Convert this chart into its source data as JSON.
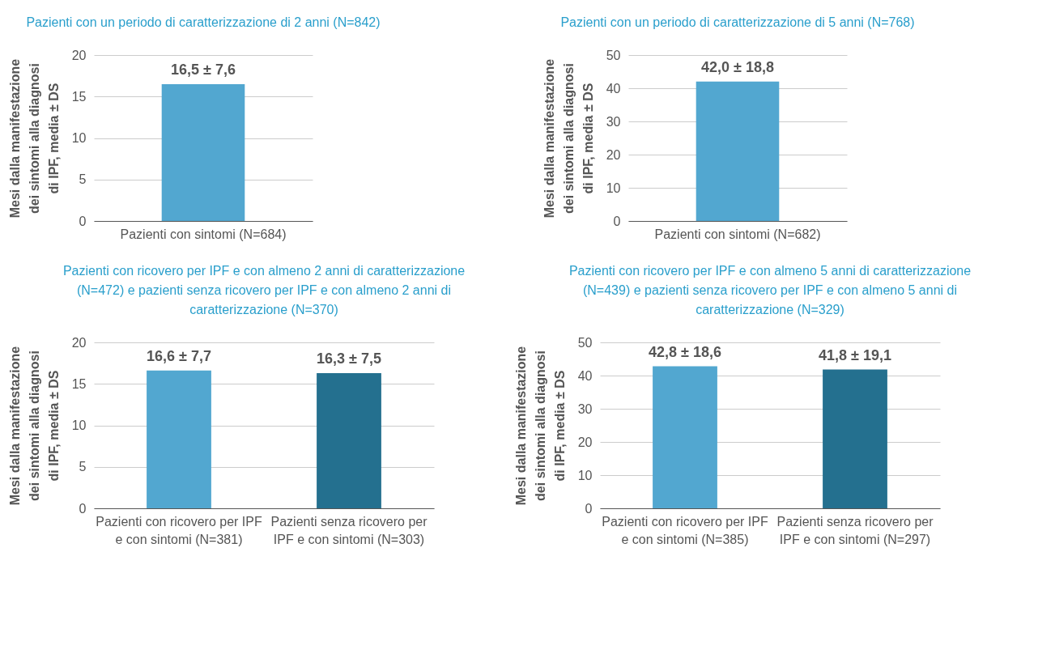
{
  "chart_data": [
    {
      "type": "bar",
      "title": "Pazienti con un periodo di caratterizzazione di 2 anni (N=842)",
      "ylabel": "Mesi dalla manifestazione dei sintomi alla diagnosi di IPF, media ± DS",
      "categories": [
        "Pazienti con sintomi (N=684)"
      ],
      "values": [
        16.5
      ],
      "colors": [
        "#52a7d0"
      ],
      "value_labels": [
        "16,5 ± 7,6"
      ],
      "ylim": [
        0,
        20
      ],
      "yticks": [
        0,
        5,
        10,
        15,
        20
      ],
      "grid": "y"
    },
    {
      "type": "bar",
      "title": "Pazienti con un periodo di caratterizzazione di 5 anni (N=768)",
      "ylabel": "Mesi dalla manifestazione dei sintomi alla diagnosi di IPF, media ± DS",
      "categories": [
        "Pazienti con sintomi (N=682)"
      ],
      "values": [
        42.0
      ],
      "colors": [
        "#52a7d0"
      ],
      "value_labels": [
        "42,0 ± 18,8"
      ],
      "ylim": [
        0,
        50
      ],
      "yticks": [
        0,
        10,
        20,
        30,
        40,
        50
      ],
      "grid": "y"
    },
    {
      "type": "bar",
      "title": "Pazienti con ricovero per IPF e con almeno 2 anni di caratterizzazione (N=472) e pazienti senza ricovero per IPF e con almeno 2 anni di caratterizzazione (N=370)",
      "ylabel": "Mesi dalla manifestazione dei sintomi alla diagnosi di IPF, media ± DS",
      "categories": [
        "Pazienti con ricovero per IPF e con sintomi (N=381)",
        "Pazienti senza ricovero per IPF e con sintomi (N=303)"
      ],
      "values": [
        16.6,
        16.3
      ],
      "colors": [
        "#52a7d0",
        "#24708f"
      ],
      "value_labels": [
        "16,6 ± 7,7",
        "16,3 ± 7,5"
      ],
      "ylim": [
        0,
        20
      ],
      "yticks": [
        0,
        5,
        10,
        15,
        20
      ],
      "grid": "y"
    },
    {
      "type": "bar",
      "title": "Pazienti con ricovero per IPF e con almeno 5 anni di caratterizzazione (N=439) e pazienti senza ricovero per IPF e con almeno 5 anni di caratterizzazione (N=329)",
      "ylabel": "Mesi dalla manifestazione dei sintomi alla diagnosi di IPF, media ± DS",
      "categories": [
        "Pazienti con ricovero per IPF e con sintomi (N=385)",
        "Pazienti senza ricovero per IPF e con sintomi (N=297)"
      ],
      "values": [
        42.8,
        41.8
      ],
      "colors": [
        "#52a7d0",
        "#24708f"
      ],
      "value_labels": [
        "42,8 ± 18,6",
        "41,8 ± 19,1"
      ],
      "ylim": [
        0,
        50
      ],
      "yticks": [
        0,
        10,
        20,
        30,
        40,
        50
      ],
      "grid": "y"
    }
  ]
}
